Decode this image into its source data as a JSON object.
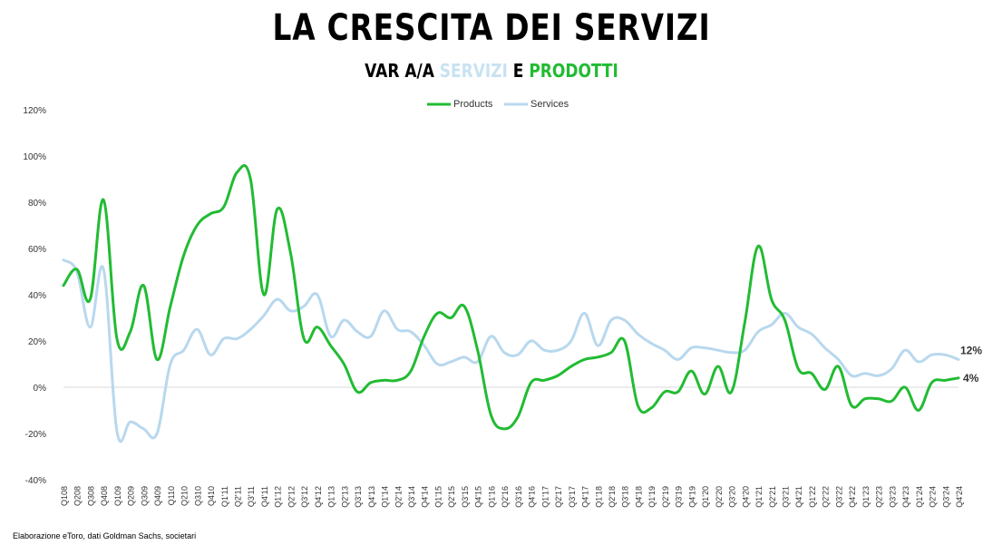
{
  "header": {
    "title": "LA CRESCITA DEI SERVIZI",
    "subtitle_prefix": "VAR A/A ",
    "subtitle_services": "SERVIZI",
    "subtitle_and": " E ",
    "subtitle_products": "PRODOTTI"
  },
  "footer": {
    "source": "Elaborazione eToro, dati Goldman Sachs, societari"
  },
  "chart_data": {
    "type": "line",
    "categories": [
      "Q108",
      "Q208",
      "Q308",
      "Q408",
      "Q109",
      "Q209",
      "Q309",
      "Q409",
      "Q110",
      "Q210",
      "Q310",
      "Q410",
      "Q1'11",
      "Q2'11",
      "Q3'11",
      "Q4'11",
      "Q1'12",
      "Q2'12",
      "Q3'12",
      "Q4'12",
      "Q1'13",
      "Q2'13",
      "Q3'13",
      "Q4'13",
      "Q1'14",
      "Q2'14",
      "Q3'14",
      "Q4'14",
      "Q1'15",
      "Q2'15",
      "Q3'15",
      "Q4'15",
      "Q1'16",
      "Q2'16",
      "Q3'16",
      "Q4'16",
      "Q1'17",
      "Q2'17",
      "Q3'17",
      "Q4'17",
      "Q1'18",
      "Q2'18",
      "Q3'18",
      "Q4'18",
      "Q1'19",
      "Q2'19",
      "Q3'19",
      "Q4'19",
      "Q1'20",
      "Q2'20",
      "Q3'20",
      "Q4'20",
      "Q1'21",
      "Q2'21",
      "Q3'21",
      "Q4'21",
      "Q1'22",
      "Q2'22",
      "Q3'22",
      "Q4'22",
      "Q1'23",
      "Q2'23",
      "Q3'23",
      "Q4'23",
      "Q1'24",
      "Q2'24",
      "Q3'24",
      "Q4'24"
    ],
    "series": [
      {
        "name": "Products",
        "color": "#22bb33",
        "values": [
          44,
          51,
          38,
          81,
          21,
          24,
          44,
          12,
          35,
          57,
          70,
          75,
          78,
          93,
          90,
          40,
          77,
          58,
          21,
          26,
          18,
          10,
          -2,
          2,
          3,
          3,
          7,
          22,
          32,
          30,
          35,
          16,
          -12,
          -18,
          -13,
          2,
          3,
          5,
          9,
          12,
          13,
          15,
          20,
          -8,
          -9,
          -2,
          -2,
          7,
          -3,
          9,
          -2,
          28,
          61,
          38,
          29,
          8,
          6,
          -1,
          9,
          -8,
          -5,
          -5,
          -6,
          0,
          -10,
          2,
          3,
          4
        ]
      },
      {
        "name": "Services",
        "color": "#b8d8ee",
        "values": [
          55,
          50,
          26,
          51,
          -19,
          -15,
          -18,
          -20,
          10,
          16,
          25,
          14,
          21,
          21,
          25,
          31,
          38,
          33,
          35,
          40,
          22,
          29,
          24,
          22,
          33,
          25,
          24,
          18,
          10,
          11,
          13,
          11,
          22,
          15,
          14,
          20,
          16,
          16,
          20,
          32,
          18,
          29,
          29,
          23,
          19,
          16,
          12,
          17,
          17,
          16,
          15,
          16,
          24,
          27,
          32,
          26,
          23,
          17,
          12,
          5,
          6,
          5,
          8,
          16,
          11,
          14,
          14,
          12
        ]
      }
    ],
    "y_ticks": [
      "120%",
      "100%",
      "80%",
      "60%",
      "40%",
      "20%",
      "0%",
      "-20%",
      "-40%"
    ],
    "ylim": [
      -40,
      120
    ],
    "end_labels": {
      "products": "4%",
      "services": "12%"
    },
    "legend_position": "top-center",
    "grid": false
  }
}
